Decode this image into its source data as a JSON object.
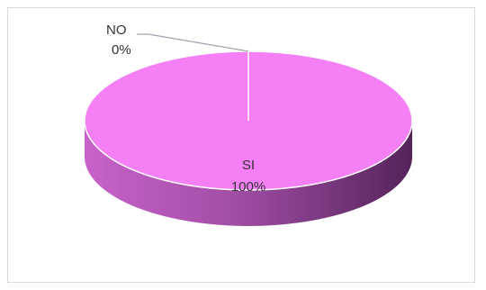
{
  "chart_data": {
    "type": "pie",
    "style": "3d",
    "title": "",
    "slices": [
      {
        "label": "SI",
        "value": 100,
        "percent_label": "100%",
        "color": "#f57ff5"
      },
      {
        "label": "NO",
        "value": 0,
        "percent_label": "0%",
        "color": "#9fa6b0"
      }
    ],
    "legend": "none",
    "label_style": "category and percentage"
  },
  "colors": {
    "top_face": "#f57ff5",
    "side_dark": "#55235a",
    "side_light": "#d26fd4",
    "leader_line": "#9fa6b0",
    "label_color": "#333333"
  }
}
